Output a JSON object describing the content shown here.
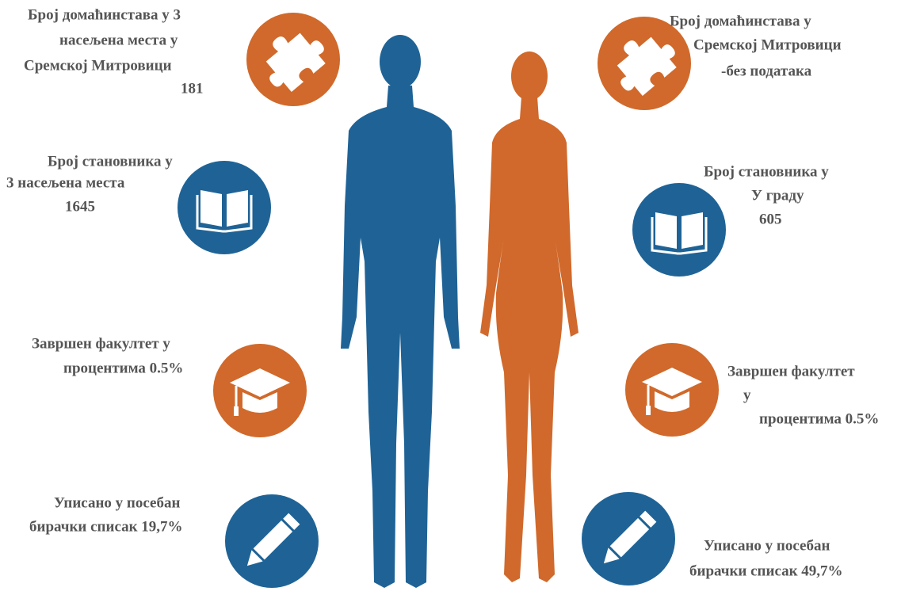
{
  "left": [
    {
      "lines": [
        "Број домаћинстава у 3",
        "насељена места у",
        "Сремској Митровици",
        "181"
      ]
    },
    {
      "lines": [
        "Број становника у",
        "3 насељена места",
        "1645"
      ]
    },
    {
      "lines": [
        "Завршен факултет у",
        "процентима 0.5%"
      ]
    },
    {
      "lines": [
        "Уписано у посебан",
        "бирачки списак 19,7%"
      ]
    }
  ],
  "right": [
    {
      "lines": [
        "Број домаћинстава  у",
        "Сремској  Митровици",
        "-без података"
      ]
    },
    {
      "lines": [
        "Број становника у",
        "У граду",
        "605"
      ]
    },
    {
      "lines": [
        "Завршен факултет",
        "у",
        "процентима 0.5%"
      ]
    },
    {
      "lines": [
        "Уписано у посебан",
        "бирачки списак 49,7%"
      ]
    }
  ]
}
